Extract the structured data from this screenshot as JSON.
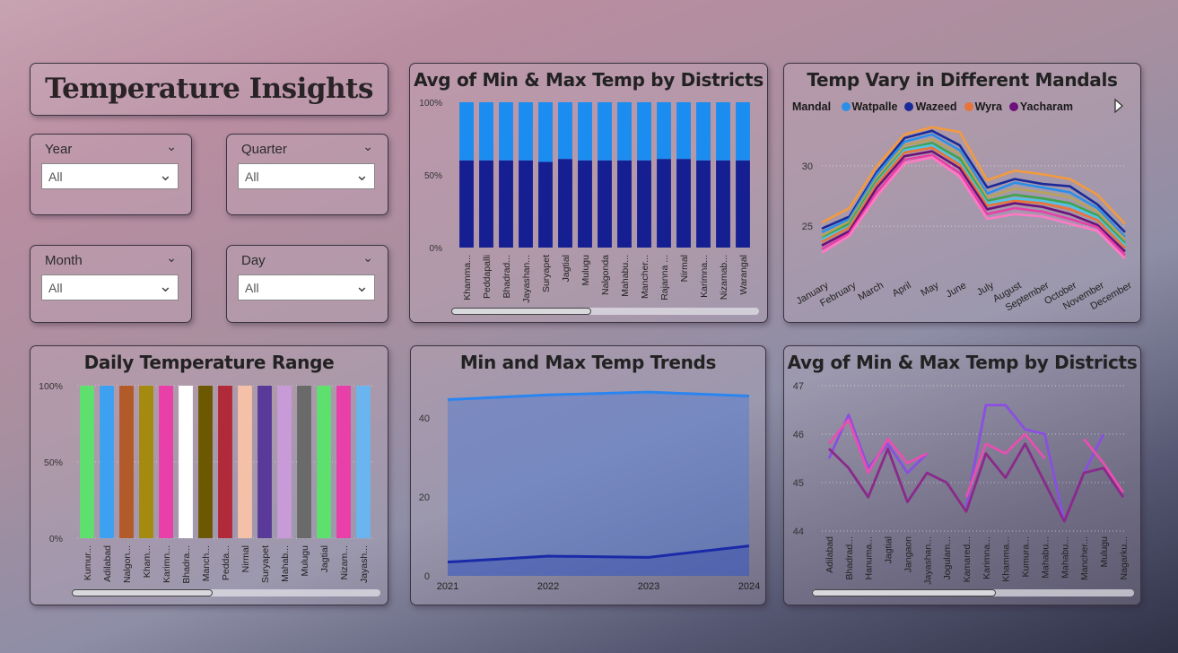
{
  "dashboard": {
    "title": "Temperature Insights"
  },
  "slicers": {
    "year": {
      "label": "Year",
      "value": "All"
    },
    "quarter": {
      "label": "Quarter",
      "value": "All"
    },
    "month": {
      "label": "Month",
      "value": "All"
    },
    "day": {
      "label": "Day",
      "value": "All"
    }
  },
  "panels": {
    "district_bars_title": "Avg of Min & Max Temp by Districts",
    "mandals_title": "Temp Vary in Different Mandals",
    "daily_range_title": "Daily Temperature Range",
    "trends_title": "Min and Max Temp Trends",
    "district_lines_title": "Avg of Min & Max Temp by Districts"
  },
  "mandal_legend": {
    "label": "Mandal",
    "items": [
      {
        "name": "Watpalle",
        "color": "#2b8fe8"
      },
      {
        "name": "Wazeed",
        "color": "#1b2a9a"
      },
      {
        "name": "Wyra",
        "color": "#e8743b"
      },
      {
        "name": "Yacharam",
        "color": "#6b117a"
      }
    ],
    "next_icon": "chevron-right-icon"
  },
  "chart_data": [
    {
      "type": "bar",
      "title": "Avg of Min & Max Temp by Districts",
      "stacked": "100%",
      "categories": [
        "Khamma...",
        "Peddapalli",
        "Bhadrad...",
        "Jayashan...",
        "Suryapet",
        "Jagtial",
        "Mulugu",
        "Nalgonda",
        "Mahabu...",
        "Mancher...",
        "Rajanna ...",
        "Nirmal",
        "Karimna...",
        "Nizamab...",
        "Warangal"
      ],
      "series": [
        {
          "color": "#151f92",
          "values": [
            60,
            60,
            60,
            60,
            59,
            61,
            60,
            60,
            60,
            60,
            61,
            61,
            60,
            60,
            60
          ]
        },
        {
          "color": "#1b8cf0",
          "values": [
            40,
            40,
            40,
            40,
            41,
            39,
            40,
            40,
            40,
            40,
            39,
            39,
            40,
            40,
            40
          ]
        }
      ],
      "yticks": [
        "0%",
        "50%",
        "100%"
      ],
      "ylim": [
        0,
        100
      ]
    },
    {
      "type": "line",
      "title": "Temp Vary in Different Mandals",
      "categories": [
        "January",
        "February",
        "March",
        "April",
        "May",
        "June",
        "July",
        "August",
        "September",
        "October",
        "November",
        "December"
      ],
      "yticks": [
        "25",
        "30"
      ],
      "ylim": [
        21,
        34
      ],
      "series": [
        {
          "color": "#f39a3e",
          "values": [
            25.3,
            26.5,
            30.0,
            32.6,
            33.2,
            32.8,
            28.8,
            29.6,
            29.3,
            28.9,
            27.6,
            25.2
          ]
        },
        {
          "color": "#1b2a9a",
          "values": [
            24.8,
            25.8,
            29.5,
            32.3,
            32.9,
            31.7,
            28.2,
            28.9,
            28.5,
            28.3,
            26.8,
            24.5
          ]
        },
        {
          "color": "#2b8fe8",
          "values": [
            24.5,
            25.6,
            29.3,
            32.0,
            32.6,
            31.3,
            27.7,
            28.6,
            28.2,
            27.8,
            26.5,
            24.1
          ]
        },
        {
          "color": "#b7a25a",
          "values": [
            24.2,
            25.4,
            29.0,
            31.7,
            32.2,
            31.0,
            27.4,
            28.1,
            27.8,
            27.4,
            26.2,
            23.9
          ]
        },
        {
          "color": "#3fa34d",
          "values": [
            24.0,
            25.2,
            28.8,
            31.4,
            31.9,
            30.6,
            27.1,
            27.6,
            27.3,
            26.9,
            25.9,
            23.6
          ]
        },
        {
          "color": "#4fc3e8",
          "values": [
            23.9,
            25.0,
            28.6,
            31.3,
            31.7,
            30.3,
            26.9,
            27.3,
            27.1,
            26.7,
            25.7,
            23.4
          ]
        },
        {
          "color": "#e8743b",
          "values": [
            23.7,
            24.9,
            28.5,
            31.1,
            31.5,
            30.1,
            26.7,
            27.1,
            26.9,
            26.4,
            25.5,
            23.2
          ]
        },
        {
          "color": "#6b117a",
          "values": [
            23.4,
            24.6,
            28.2,
            30.8,
            31.2,
            29.8,
            26.4,
            26.9,
            26.6,
            26.0,
            25.1,
            22.9
          ]
        },
        {
          "color": "#e83fa8",
          "values": [
            23.1,
            24.4,
            27.8,
            30.5,
            30.9,
            29.4,
            26.0,
            26.5,
            26.2,
            25.6,
            24.9,
            22.6
          ]
        },
        {
          "color": "#ff79c6",
          "values": [
            22.8,
            24.2,
            27.5,
            30.2,
            30.7,
            29.1,
            25.6,
            26.0,
            25.8,
            25.2,
            24.6,
            22.3
          ]
        }
      ]
    },
    {
      "type": "bar",
      "title": "Daily Temperature Range",
      "stacked": "100%",
      "categories": [
        "Kumur...",
        "Adilabad",
        "Nalgon...",
        "Kham...",
        "Karimn...",
        "Bhadra...",
        "Manch...",
        "Pedda...",
        "Nirmal",
        "Suryapet",
        "Mahab...",
        "Mulugu",
        "Jagtial",
        "Nizam...",
        "Jayash..."
      ],
      "colors": [
        "#5ee06e",
        "#3ea0f0",
        "#b35a2a",
        "#a58a10",
        "#e83fa8",
        "#ffffff",
        "#6b5800",
        "#b02a3a",
        "#f5c0a8",
        "#5a3a98",
        "#c89ad8",
        "#6a6a6a",
        "#5ee06e",
        "#e83fa8",
        "#6ab4f0"
      ],
      "values": [
        100,
        100,
        100,
        100,
        100,
        100,
        100,
        100,
        100,
        100,
        100,
        100,
        100,
        100,
        100
      ],
      "yticks": [
        "0%",
        "50%",
        "100%"
      ],
      "ylim": [
        0,
        100
      ]
    },
    {
      "type": "area",
      "title": "Min and Max Temp Trends",
      "x": [
        "2021",
        "2022",
        "2023",
        "2024"
      ],
      "yticks": [
        "0",
        "20",
        "40"
      ],
      "ylim": [
        0,
        48
      ],
      "series": [
        {
          "color": "#2a85f0",
          "values": [
            44.7,
            45.9,
            46.6,
            45.6
          ]
        },
        {
          "color": "#1a2aa8",
          "values": [
            3.5,
            5.0,
            4.7,
            7.6
          ]
        }
      ]
    },
    {
      "type": "line",
      "title": "Avg of Min & Max Temp by Districts",
      "categories": [
        "Adilabad",
        "Bhadrad...",
        "Hanuma...",
        "Jagtial",
        "Jangaon",
        "Jayashan...",
        "Jogulam...",
        "Kamared...",
        "Karimna...",
        "Khamma...",
        "Kumura...",
        "Mahabu...",
        "Mahabu...",
        "Mancher...",
        "Mulugu",
        "Nagarku..."
      ],
      "yticks": [
        "44",
        "45",
        "46",
        "47"
      ],
      "ylim": [
        44,
        47
      ],
      "series": [
        {
          "color": "#8a4fe0",
          "values": [
            45.5,
            46.4,
            45.3,
            45.8,
            45.2,
            45.6,
            null,
            44.5,
            46.6,
            46.6,
            46.1,
            46.0,
            44.2,
            45.2,
            46.0,
            null
          ]
        },
        {
          "color": "#e84fb0",
          "values": [
            45.8,
            46.3,
            45.2,
            45.9,
            45.4,
            45.6,
            null,
            44.7,
            45.8,
            45.6,
            46.0,
            45.5,
            null,
            45.9,
            45.4,
            44.8
          ]
        },
        {
          "color": "#8a2a8a",
          "values": [
            45.7,
            45.3,
            44.7,
            45.7,
            44.6,
            45.2,
            45.0,
            44.4,
            45.6,
            45.1,
            45.8,
            45.0,
            44.2,
            45.2,
            45.3,
            44.7
          ]
        }
      ]
    }
  ]
}
